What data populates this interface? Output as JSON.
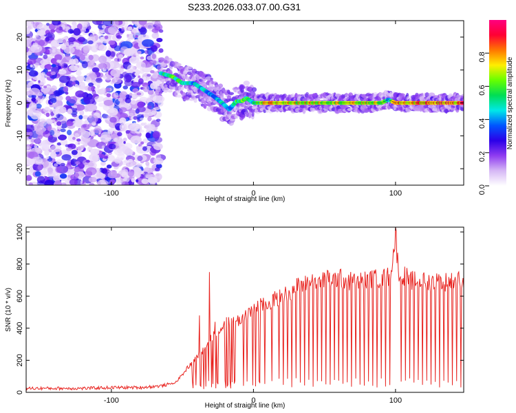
{
  "title": "S233.2026.033.07.00.G31",
  "colors": {
    "snr_line": "#e8231f",
    "frame": "#000000",
    "colormap": [
      "#ffffff",
      "#d6b8f5",
      "#8f3cf0",
      "#2b00e8",
      "#0055ff",
      "#00e8e8",
      "#00dd55",
      "#66ff00",
      "#ffee00",
      "#ff7700",
      "#ff0033",
      "#ff007f"
    ]
  },
  "chart_data": [
    {
      "type": "heatmap",
      "title": "",
      "xlabel": "Height of straight line (km)",
      "ylabel": "Frequency (Hz)",
      "xlim": [
        -160,
        148
      ],
      "ylim": [
        -25,
        25
      ],
      "xticks": [
        -100,
        0,
        100
      ],
      "yticks": [
        -20,
        -10,
        0,
        10,
        20
      ],
      "grid": false,
      "ridge": {
        "description_points_x": [
          -65,
          -57,
          -50,
          -42,
          -35,
          -28,
          -22,
          -17,
          -12,
          -8,
          -5,
          0,
          10,
          30,
          60,
          90,
          95,
          100,
          148
        ],
        "description_points_y": [
          9,
          8,
          6,
          6,
          4,
          2,
          0,
          -2,
          0.5,
          0.5,
          1.5,
          0,
          0,
          0,
          0,
          0,
          1,
          0,
          0
        ],
        "amplitude": [
          0.55,
          0.7,
          0.55,
          0.5,
          0.5,
          0.45,
          0.5,
          0.4,
          0.6,
          0.7,
          0.6,
          0.5,
          0.85,
          0.8,
          0.8,
          0.75,
          0.5,
          0.85,
          0.95
        ]
      },
      "colorbar": {
        "label": "Normalized spectral amplitude",
        "range": [
          0,
          1
        ],
        "ticks": [
          0.0,
          0.2,
          0.4,
          0.6,
          0.8
        ]
      }
    },
    {
      "type": "line",
      "title": "",
      "xlabel": "Height of straight line (km)",
      "ylabel": "SNR (10 * v/v)",
      "xlim": [
        -160,
        148
      ],
      "ylim": [
        0,
        1030
      ],
      "xticks": [
        -100,
        0,
        100
      ],
      "yticks": [
        0,
        200,
        400,
        600,
        800,
        1000
      ],
      "grid": false,
      "series": [
        {
          "envelope_x": [
            -160,
            -140,
            -120,
            -100,
            -80,
            -65,
            -55,
            -50,
            -45,
            -40,
            -35,
            -30,
            -25,
            -20,
            -15,
            -10,
            -5,
            0,
            5,
            10,
            15,
            20,
            25,
            30,
            40,
            50,
            60,
            70,
            80,
            90,
            95,
            98,
            100,
            102,
            110,
            120,
            130,
            140,
            148
          ],
          "envelope_y": [
            25,
            25,
            25,
            30,
            30,
            40,
            60,
            110,
            170,
            220,
            270,
            340,
            390,
            430,
            440,
            450,
            490,
            520,
            540,
            550,
            580,
            600,
            620,
            660,
            690,
            700,
            710,
            690,
            700,
            710,
            720,
            820,
            1000,
            760,
            700,
            690,
            690,
            690,
            700
          ],
          "spikes": [
            {
              "x": -38,
              "y": 480
            },
            {
              "x": -31,
              "y": 750
            },
            {
              "x": -27,
              "y": 440
            },
            {
              "x": 100,
              "y": 1030
            },
            {
              "x": 90,
              "y": 770
            }
          ],
          "dropouts_x": [
            8,
            13,
            18,
            21,
            24,
            27,
            30,
            33,
            36,
            39,
            42,
            45,
            48,
            51,
            54,
            57,
            60,
            63,
            66,
            69,
            72,
            75,
            78,
            81,
            84,
            87,
            90,
            93,
            96,
            104,
            107,
            110,
            113,
            116,
            119,
            122,
            125,
            128,
            131,
            134,
            137,
            140,
            143,
            146
          ]
        }
      ]
    }
  ]
}
